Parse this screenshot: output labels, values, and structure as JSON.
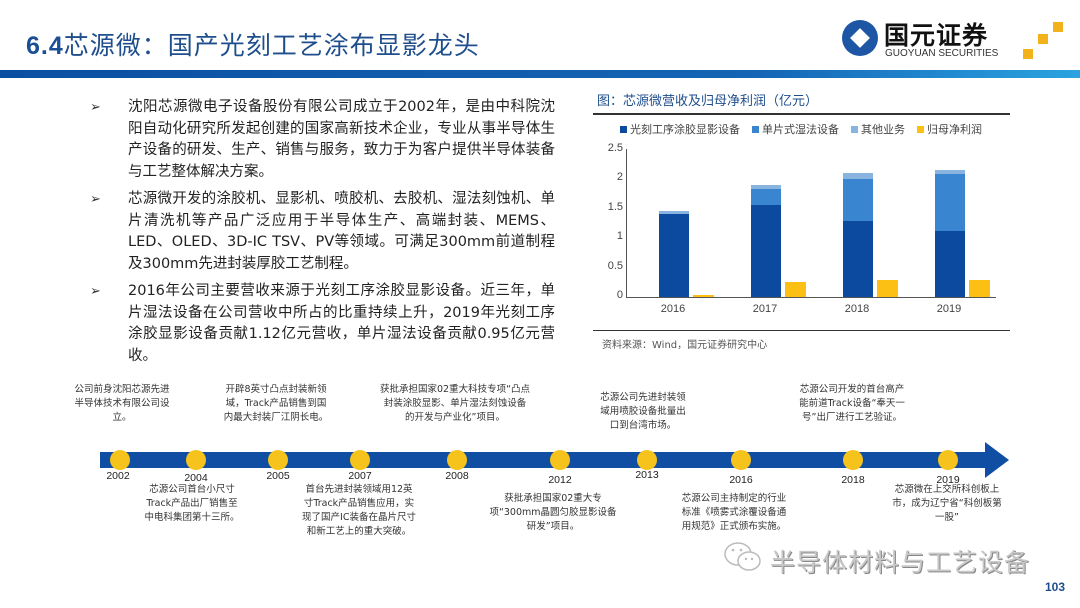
{
  "header": {
    "title_num": "6.4",
    "title_text": "芯源微：国产光刻工艺涂布显影龙头",
    "logo_cn": "国元证券",
    "logo_en": "GUOYUAN SECURITIES"
  },
  "bullets": [
    {
      "mark": "➢",
      "text": "沈阳芯源微电子设备股份有限公司成立于2002年，是由中科院沈阳自动化研究所发起创建的国家高新技术企业，专业从事半导体生产设备的研发、生产、销售与服务，致力于为客户提供半导体装备与工艺整体解决方案。"
    },
    {
      "mark": "➢",
      "text": "芯源微开发的涂胶机、显影机、喷胶机、去胶机、湿法刻蚀机、单片清洗机等产品广泛应用于半导体生产、高端封装、MEMS、LED、OLED、3D-IC TSV、PV等领域。可满足300mm前道制程及300mm先进封装厚胶工艺制程。"
    },
    {
      "mark": "➢",
      "text": "2016年公司主要营收来源于光刻工序涂胶显影设备。近三年，单片湿法设备在公司营收中所占的比重持续上升，2019年光刻工序涂胶显影设备贡献1.12亿元营收，单片湿法设备贡献0.95亿元营收。"
    }
  ],
  "chart": {
    "title": "图：芯源微营收及归母净利润（亿元）",
    "source": "资料来源：Wind，国元证券研究中心",
    "legend": [
      {
        "label": "光刻工序涂胶显影设备",
        "color": "#0b4a9e"
      },
      {
        "label": "单片式湿法设备",
        "color": "#3a85cf"
      },
      {
        "label": "其他业务",
        "color": "#8ab4e0"
      },
      {
        "label": "归母净利润",
        "color": "#fcbf14"
      }
    ],
    "y_ticks": [
      "2.5",
      "2",
      "1.5",
      "1",
      "0.5",
      "0"
    ]
  },
  "chart_data": {
    "type": "bar",
    "title": "图：芯源微营收及归母净利润（亿元）",
    "xlabel": "",
    "ylabel": "亿元",
    "ylim": [
      0,
      2.5
    ],
    "y_ticks": [
      0,
      0.5,
      1,
      1.5,
      2,
      2.5
    ],
    "categories": [
      "2016",
      "2017",
      "2018",
      "2019"
    ],
    "stacked_series": [
      {
        "name": "光刻工序涂胶显影设备",
        "values": [
          1.41,
          1.55,
          1.28,
          1.12
        ],
        "color": "#0b4a9e"
      },
      {
        "name": "单片式湿法设备",
        "values": [
          0.0,
          0.27,
          0.72,
          0.95
        ],
        "color": "#3a85cf"
      },
      {
        "name": "其他业务",
        "values": [
          0.05,
          0.07,
          0.1,
          0.07
        ],
        "color": "#8ab4e0"
      }
    ],
    "series": [
      {
        "name": "光刻工序涂胶显影设备",
        "values": [
          1.41,
          1.55,
          1.28,
          1.12
        ]
      },
      {
        "name": "单片式湿法设备",
        "values": [
          0.0,
          0.27,
          0.72,
          0.95
        ]
      },
      {
        "name": "其他业务",
        "values": [
          0.05,
          0.07,
          0.1,
          0.07
        ]
      },
      {
        "name": "归母净利润",
        "values": [
          0.04,
          0.26,
          0.29,
          0.28
        ]
      }
    ],
    "legend_position": "top",
    "grid": false,
    "source": "资料来源：Wind，国元证券研究中心"
  },
  "timeline": {
    "years": [
      "2002",
      "2004",
      "2005",
      "2007",
      "2008",
      "2012",
      "2013",
      "2016",
      "2018",
      "2019"
    ],
    "events_above": [
      {
        "year": "2002",
        "text": "公司前身沈阳芯源先进半导体技术有限公司设立。"
      },
      {
        "year": "2005",
        "text": "开辟8英寸凸点封装新领域，Track产品销售到国内最大封装厂江阴长电。"
      },
      {
        "year": "2008",
        "text": "获批承担国家02重大科技专项“凸点封装涂胶显影、单片湿法刻蚀设备的开发与产业化”项目。"
      },
      {
        "year": "2013",
        "text": "芯源公司先进封装领域用喷胶设备批量出口到台湾市场。"
      },
      {
        "year": "2018",
        "text": "芯源公司开发的首台高产能前道Track设备“奉天一号”出厂进行工艺验证。"
      }
    ],
    "events_below": [
      {
        "year": "2004",
        "text": "芯源公司首台小尺寸Track产品出厂销售至中电科集团第十三所。"
      },
      {
        "year": "2007",
        "text": "首台先进封装领域用12英寸Track产品销售应用，实现了国产IC装备在晶片尺寸和新工艺上的重大突破。"
      },
      {
        "year": "2012",
        "text": "获批承担国家02重大专项“300mm晶圆匀胶显影设备研发”项目。"
      },
      {
        "year": "2016",
        "text": "芯源公司主持制定的行业标准《喷雾式涂覆设备通用规范》正式颁布实施。"
      },
      {
        "year": "2019",
        "text": "芯源微在上交所科创板上市，成为辽宁省“科创板第一股”"
      }
    ]
  },
  "footer": {
    "watermark": "半导体材料与工艺设备",
    "page_number": "103"
  }
}
